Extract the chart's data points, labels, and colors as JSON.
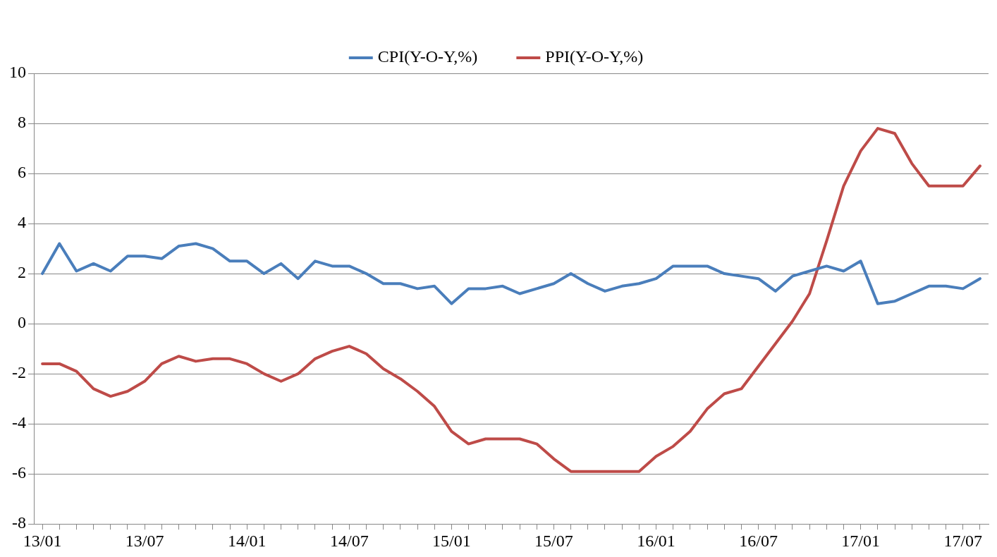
{
  "chart_data": {
    "type": "line",
    "categories": [
      "13/01",
      null,
      null,
      null,
      null,
      null,
      "13/07",
      null,
      null,
      null,
      null,
      null,
      "14/01",
      null,
      null,
      null,
      null,
      null,
      "14/07",
      null,
      null,
      null,
      null,
      null,
      "15/01",
      null,
      null,
      null,
      null,
      null,
      "15/07",
      null,
      null,
      null,
      null,
      null,
      "16/01",
      null,
      null,
      null,
      null,
      null,
      "16/07",
      null,
      null,
      null,
      null,
      null,
      "17/01",
      null,
      null,
      null,
      null,
      null,
      "17/07",
      null
    ],
    "series": [
      {
        "name": "CPI(Y-O-Y,%)",
        "color": "#4a7ebb",
        "values": [
          2.0,
          3.2,
          2.1,
          2.4,
          2.1,
          2.7,
          2.7,
          2.6,
          3.1,
          3.2,
          3.0,
          2.5,
          2.5,
          2.0,
          2.4,
          1.8,
          2.5,
          2.3,
          2.3,
          2.0,
          1.6,
          1.6,
          1.4,
          1.5,
          0.8,
          1.4,
          1.4,
          1.5,
          1.2,
          1.4,
          1.6,
          2.0,
          1.6,
          1.3,
          1.5,
          1.6,
          1.8,
          2.3,
          2.3,
          2.3,
          2.0,
          1.9,
          1.8,
          1.3,
          1.9,
          2.1,
          2.3,
          2.1,
          2.5,
          0.8,
          0.9,
          1.2,
          1.5,
          1.5,
          1.4,
          1.8
        ]
      },
      {
        "name": "PPI(Y-O-Y,%)",
        "color": "#be4b48",
        "values": [
          -1.6,
          -1.6,
          -1.9,
          -2.6,
          -2.9,
          -2.7,
          -2.3,
          -1.6,
          -1.3,
          -1.5,
          -1.4,
          -1.4,
          -1.6,
          -2.0,
          -2.3,
          -2.0,
          -1.4,
          -1.1,
          -0.9,
          -1.2,
          -1.8,
          -2.2,
          -2.7,
          -3.3,
          -4.3,
          -4.8,
          -4.6,
          -4.6,
          -4.6,
          -4.8,
          -5.4,
          -5.9,
          -5.9,
          -5.9,
          -5.9,
          -5.9,
          -5.3,
          -4.9,
          -4.3,
          -3.4,
          -2.8,
          -2.6,
          -1.7,
          -0.8,
          0.1,
          1.2,
          3.3,
          5.5,
          6.9,
          7.8,
          7.6,
          6.4,
          5.5,
          5.5,
          5.5,
          6.3
        ]
      }
    ],
    "ylim": [
      -8,
      10
    ],
    "yticks": [
      -8,
      -6,
      -4,
      -2,
      0,
      2,
      4,
      6,
      8,
      10
    ],
    "grid": "y",
    "legend": "top",
    "marker": "none",
    "line_style": "solid"
  }
}
